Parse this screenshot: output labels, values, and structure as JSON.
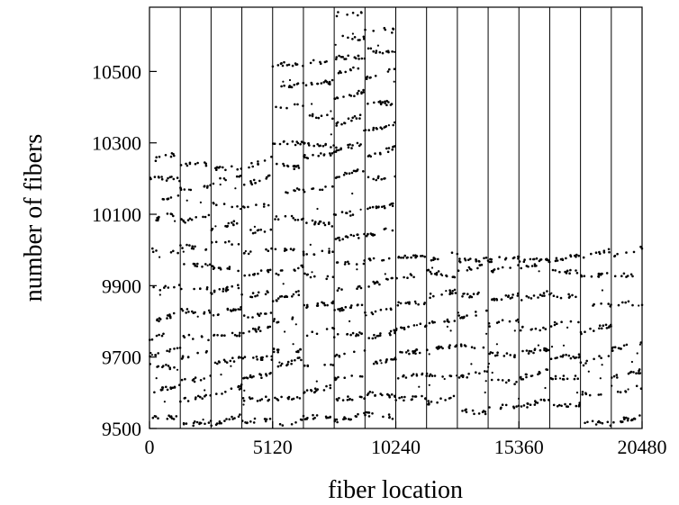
{
  "chart_data": {
    "type": "scatter",
    "title": "",
    "xlabel": "fiber location",
    "ylabel": "number of fibers",
    "xlim": [
      0,
      20480
    ],
    "ylim": [
      9500,
      10680
    ],
    "x_ticks": [
      0,
      5120,
      10240,
      15360,
      20480
    ],
    "x_tick_labels": [
      "0",
      "5120",
      "10240",
      "15360",
      "20480"
    ],
    "y_ticks": [
      9500,
      9700,
      9900,
      10100,
      10300,
      10500
    ],
    "y_tick_labels": [
      "9500",
      "9700",
      "9900",
      "10100",
      "10300",
      "10500"
    ],
    "grid": false,
    "legend": "none",
    "marker_color": "#000000",
    "segment_boundaries": [
      1280,
      2560,
      3840,
      5120,
      6400,
      7680,
      8960,
      10240,
      11520,
      12800,
      14080,
      15360,
      16640,
      17920,
      19200
    ],
    "segments": [
      {
        "x_start": 0,
        "x_end": 1280,
        "levels": [
          9530,
          9600,
          9680,
          9700,
          9750,
          9800,
          9890,
          10000,
          10080,
          10140,
          10200,
          10250
        ]
      },
      {
        "x_start": 1280,
        "x_end": 2560,
        "levels": [
          9510,
          9580,
          9630,
          9700,
          9760,
          9830,
          9890,
          9960,
          10010,
          10080,
          10170,
          10240
        ]
      },
      {
        "x_start": 2560,
        "x_end": 3840,
        "levels": [
          9510,
          9590,
          9680,
          9760,
          9820,
          9880,
          9950,
          10020,
          10060,
          10130,
          10190,
          10230
        ]
      },
      {
        "x_start": 3840,
        "x_end": 5120,
        "levels": [
          9520,
          9580,
          9640,
          9700,
          9770,
          9810,
          9870,
          9930,
          9990,
          10050,
          10120,
          10180,
          10230
        ]
      },
      {
        "x_start": 5120,
        "x_end": 6400,
        "levels": [
          9510,
          9580,
          9670,
          9720,
          9800,
          9860,
          9930,
          10000,
          10090,
          10160,
          10240,
          10300,
          10400,
          10450,
          10520
        ]
      },
      {
        "x_start": 6400,
        "x_end": 7680,
        "levels": [
          9530,
          9600,
          9680,
          9760,
          9840,
          9930,
          9990,
          10080,
          10160,
          10260,
          10300,
          10380,
          10460,
          10530
        ]
      },
      {
        "x_start": 7680,
        "x_end": 8960,
        "levels": [
          9520,
          9580,
          9640,
          9700,
          9760,
          9830,
          9890,
          9960,
          10030,
          10100,
          10200,
          10280,
          10350,
          10420,
          10490,
          10540,
          10600,
          10660
        ]
      },
      {
        "x_start": 8960,
        "x_end": 10240,
        "levels": [
          9540,
          9600,
          9680,
          9750,
          9820,
          9900,
          9970,
          10040,
          10110,
          10200,
          10260,
          10330,
          10410,
          10480,
          10560,
          10620
        ]
      },
      {
        "x_start": 10240,
        "x_end": 11520,
        "levels": [
          9580,
          9640,
          9710,
          9780,
          9850,
          9920,
          9980
        ]
      },
      {
        "x_start": 11520,
        "x_end": 12800,
        "levels": [
          9570,
          9650,
          9720,
          9800,
          9870,
          9940,
          9970
        ]
      },
      {
        "x_start": 12800,
        "x_end": 14080,
        "levels": [
          9550,
          9640,
          9730,
          9810,
          9870,
          9940,
          9970
        ]
      },
      {
        "x_start": 14080,
        "x_end": 15360,
        "levels": [
          9560,
          9640,
          9710,
          9790,
          9860,
          9940,
          9970
        ]
      },
      {
        "x_start": 15360,
        "x_end": 16640,
        "levels": [
          9560,
          9640,
          9710,
          9780,
          9860,
          9950,
          9970
        ]
      },
      {
        "x_start": 16640,
        "x_end": 17920,
        "levels": [
          9560,
          9640,
          9700,
          9790,
          9870,
          9940,
          9970
        ]
      },
      {
        "x_start": 17920,
        "x_end": 19200,
        "levels": [
          9520,
          9600,
          9680,
          9770,
          9850,
          9930,
          9980
        ]
      },
      {
        "x_start": 19200,
        "x_end": 20480,
        "levels": [
          9520,
          9600,
          9640,
          9720,
          9850,
          9930,
          9980
        ]
      }
    ]
  }
}
